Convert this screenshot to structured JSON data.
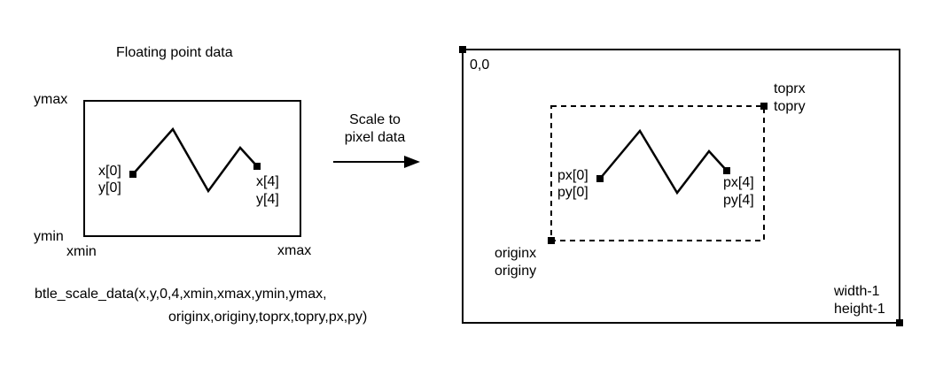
{
  "left_panel": {
    "title": "Floating point data",
    "ymax": "ymax",
    "ymin": "ymin",
    "xmin": "xmin",
    "xmax": "xmax",
    "first_point_x": "x[0]",
    "first_point_y": "y[0]",
    "last_point_x": "x[4]",
    "last_point_y": "y[4]"
  },
  "arrow": {
    "line1": "Scale to",
    "line2": "pixel data"
  },
  "function_call": {
    "line1": "btle_scale_data(x,y,0,4,xmin,xmax,ymin,ymax,",
    "line2": "originx,originy,toprx,topry,px,py)"
  },
  "right_panel": {
    "origin_label": "0,0",
    "topr_x": "toprx",
    "topr_y": "topry",
    "origin_x": "originx",
    "origin_y": "originy",
    "first_point_x": "px[0]",
    "first_point_y": "py[0]",
    "last_point_x": "px[4]",
    "last_point_y": "py[4]",
    "corner_width": "width-1",
    "corner_height": "height-1"
  }
}
